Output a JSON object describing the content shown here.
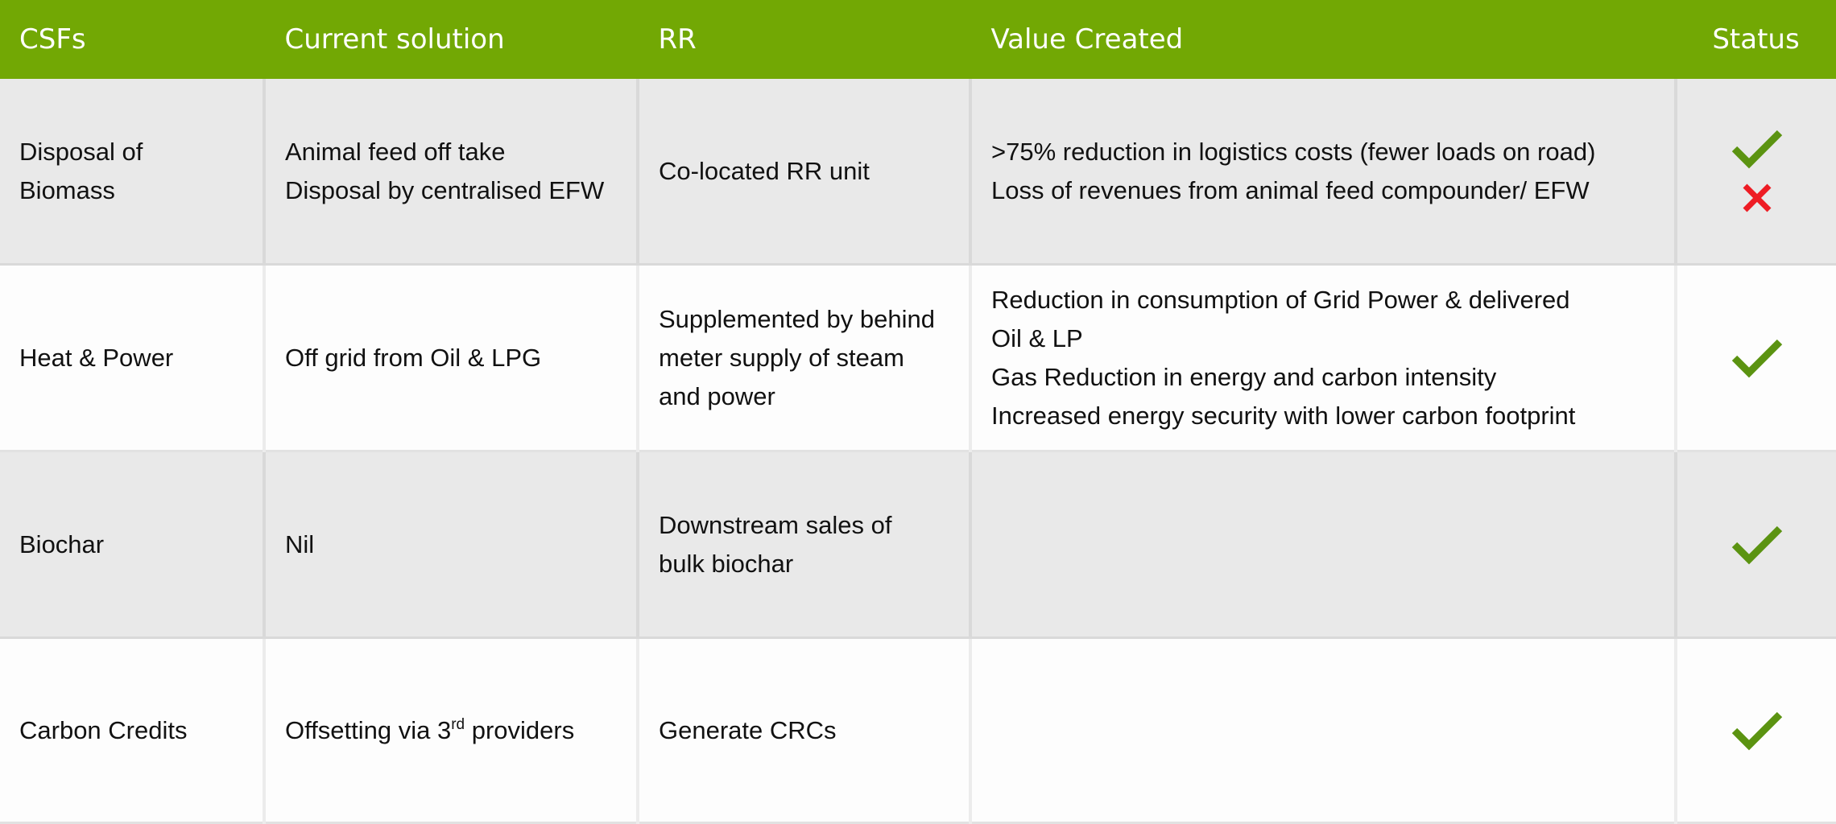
{
  "table": {
    "headers": {
      "csfs": "CSFs",
      "current_solution": "Current solution",
      "rr": "RR",
      "value_created": "Value Created",
      "status": "Status"
    },
    "rows": [
      {
        "csf": "Disposal of Biomass",
        "csf_lines": [
          "Disposal of",
          "Biomass"
        ],
        "current_solution_lines": [
          "Animal feed off take",
          "Disposal by centralised EFW"
        ],
        "rr_lines": [
          "Co-located RR unit"
        ],
        "value_lines": [
          ">75% reduction in logistics costs (fewer loads on road)",
          "Loss of revenues from animal feed compounder/ EFW"
        ],
        "status": [
          "check-icon",
          "cross-icon"
        ]
      },
      {
        "csf": "Heat & Power",
        "current_solution_lines": [
          "Off grid from Oil & LPG"
        ],
        "rr_lines": [
          "Supplemented by behind",
          "meter supply of steam",
          "and power"
        ],
        "value_lines": [
          "Reduction in consumption of Grid Power & delivered",
          "Oil & LP",
          "Gas Reduction in energy and carbon intensity",
          "Increased energy security with lower carbon footprint"
        ],
        "status": [
          "check-icon"
        ]
      },
      {
        "csf": "Biochar",
        "current_solution_lines": [
          "Nil"
        ],
        "rr_lines": [
          "Downstream sales of",
          "bulk biochar"
        ],
        "value_lines": [],
        "status": [
          "check-icon"
        ]
      },
      {
        "csf": "Carbon Credits",
        "current_solution_parts": {
          "before": "Offsetting via 3",
          "sup": "rd",
          "after": " providers"
        },
        "rr_lines": [
          "Generate CRCs"
        ],
        "value_lines": [],
        "status": [
          "check-icon"
        ]
      }
    ]
  },
  "colors": {
    "header_bg": "#72a804",
    "header_text": "#ffffff",
    "row_shaded": "#e9e9e9",
    "row_light": "#fdfdfd",
    "check": "#5b9311",
    "cross": "#ee1c24"
  }
}
